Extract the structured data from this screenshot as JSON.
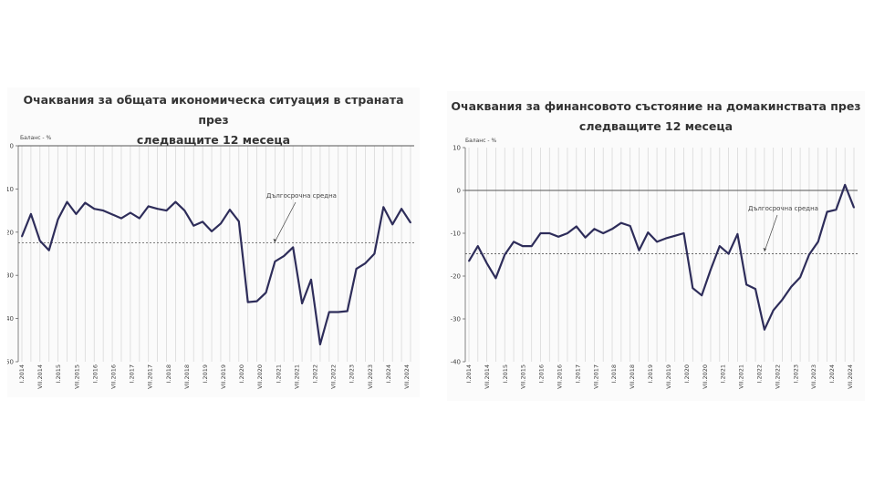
{
  "chart_data": [
    {
      "type": "line",
      "title": "Очаквания за общата икономическа ситуация в страната през следващите 12 месеца",
      "title_lines": [
        "Очаквания за общата икономическа ситуация в страната през",
        "следващите 12 месеца"
      ],
      "ylabel": "Баланс - %",
      "ylim": [
        -50,
        0
      ],
      "yticks": [
        0,
        -10,
        -20,
        -30,
        -40,
        -50
      ],
      "ytick_labels": [
        "0",
        "-10",
        "-20",
        "-30",
        "-40",
        "-50"
      ],
      "grid": "vertical",
      "x_tick_labels": [
        "I.2014",
        "VII.2014",
        "I.2015",
        "VII.2015",
        "I.2016",
        "VII.2016",
        "I.2017",
        "VII.2017",
        "I.2018",
        "VII.2018",
        "I.2019",
        "VII.2019",
        "I.2020",
        "VII.2020",
        "I.2021",
        "VII.2021",
        "I.2022",
        "VII.2022",
        "I.2023",
        "VII.2023",
        "I.2024",
        "VII.2024"
      ],
      "series": [
        {
          "values": [
            -21,
            -15.8,
            -22,
            -24.2,
            -17,
            -13,
            -15.8,
            -13.2,
            -14.6,
            -15,
            -15.9,
            -16.8,
            -15.5,
            -16.8,
            -14,
            -14.6,
            -15,
            -13,
            -15,
            -18.5,
            -17.6,
            -19.8,
            -18,
            -14.8,
            -17.5,
            -36.2,
            -36,
            -34,
            -26.8,
            -25.5,
            -23.5,
            -36.5,
            -31,
            -46,
            -38.5,
            -38.5,
            -38.3,
            -28.5,
            -27.2,
            -25,
            -14.2,
            -18.2,
            -14.6,
            -17.8
          ],
          "color": "#2e2d5a"
        }
      ],
      "reference_line": {
        "label": "Дългосрочна средна",
        "value": -22.5,
        "color": "#555555"
      }
    },
    {
      "type": "line",
      "title": "Очаквания за финансовото състояние на домакинствата през следващите 12 месеца",
      "title_lines": [
        "Очаквания за финансовото състояние на домакинствата през",
        "следващите 12 месеца"
      ],
      "ylabel": "Баланс - %",
      "ylim": [
        -40,
        10
      ],
      "yticks": [
        10,
        0,
        -10,
        -20,
        -30,
        -40
      ],
      "ytick_labels": [
        "10",
        "0",
        "-10",
        "-20",
        "-30",
        "-40"
      ],
      "grid": "vertical",
      "x_tick_labels": [
        "I.2014",
        "VII.2014",
        "I.2015",
        "VII.2015",
        "I.2016",
        "VII.2016",
        "I.2017",
        "VII.2017",
        "I.2018",
        "VII.2018",
        "I.2019",
        "VII.2019",
        "I.2020",
        "VII.2020",
        "I.2021",
        "VII.2021",
        "I.2022",
        "VII.2022",
        "I.2023",
        "VII.2023",
        "I.2024",
        "VII.2024"
      ],
      "series": [
        {
          "values": [
            -16.5,
            -13,
            -17,
            -20.5,
            -15,
            -12,
            -13,
            -13,
            -10,
            -10,
            -10.8,
            -10,
            -8.4,
            -11,
            -9,
            -10,
            -9,
            -7.6,
            -8.3,
            -14,
            -9.8,
            -12,
            -11.2,
            -10.6,
            -10,
            -22.8,
            -24.5,
            -18.5,
            -13,
            -14.8,
            -10.2,
            -22,
            -23,
            -32.5,
            -28,
            -25.5,
            -22.5,
            -20.3,
            -15,
            -12,
            -5,
            -4.5,
            1.3,
            -4
          ],
          "color": "#2e2d5a"
        }
      ],
      "reference_line": {
        "label": "Дългосрочна средна",
        "value": -14.8,
        "color": "#555555"
      }
    }
  ]
}
